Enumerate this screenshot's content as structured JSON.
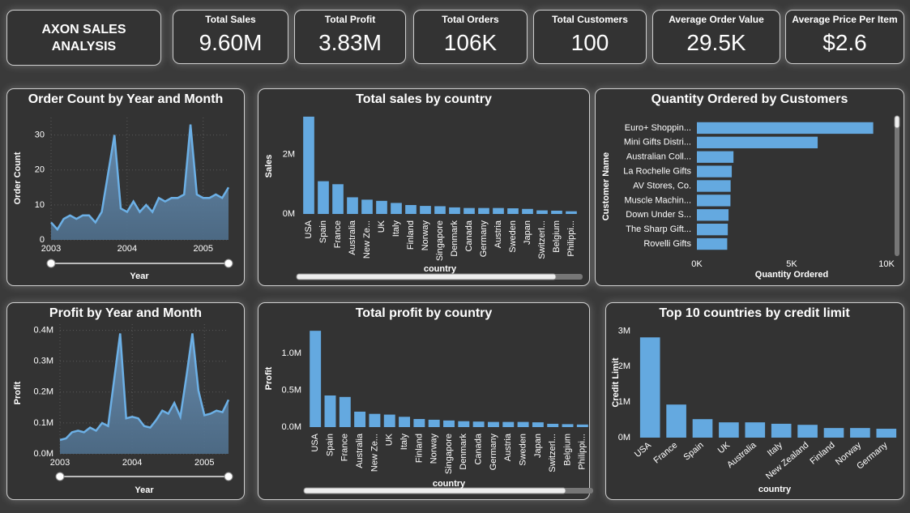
{
  "header": {
    "title": "AXON SALES ANALYSIS"
  },
  "kpis": [
    {
      "label": "Total Sales",
      "value": "9.60M"
    },
    {
      "label": "Total Profit",
      "value": "3.83M"
    },
    {
      "label": "Total Orders",
      "value": "106K"
    },
    {
      "label": "Total Customers",
      "value": "100"
    },
    {
      "label": "Average Order Value",
      "value": "29.5K"
    },
    {
      "label": "Average Price Per Item",
      "value": "$2.6"
    }
  ],
  "chart_data": [
    {
      "type": "area",
      "title": "Order Count by Year and Month",
      "x_label": "Year",
      "y_label": "Order Count",
      "categories": [
        "2003",
        null,
        null,
        null,
        null,
        null,
        null,
        null,
        null,
        null,
        null,
        null,
        "2004",
        null,
        null,
        null,
        null,
        null,
        null,
        null,
        null,
        null,
        null,
        null,
        "2005",
        null,
        null,
        null,
        null
      ],
      "values": [
        5,
        3,
        6,
        7,
        6,
        7,
        7,
        5,
        8,
        19,
        30,
        9,
        8,
        11,
        8,
        10,
        8,
        12,
        11,
        12,
        12,
        13,
        33,
        13,
        12,
        12,
        13,
        12,
        15
      ],
      "color": "#6cb0e6",
      "ylim": [
        0,
        35
      ],
      "yticks": [
        0,
        10,
        20,
        30
      ],
      "grid": true
    },
    {
      "type": "bar",
      "title": "Total sales by country",
      "x_label": "country",
      "y_label": "Sales",
      "categories": [
        "USA",
        "Spain",
        "France",
        "Australia",
        "New Ze...",
        "UK",
        "Italy",
        "Finland",
        "Norway",
        "Singapore",
        "Denmark",
        "Canada",
        "Germany",
        "Austria",
        "Sweden",
        "Japan",
        "Switzerl...",
        "Belgium",
        "Philippi..."
      ],
      "values": [
        3270000,
        1100000,
        1000000,
        560000,
        480000,
        440000,
        370000,
        300000,
        270000,
        260000,
        220000,
        200000,
        200000,
        200000,
        190000,
        170000,
        120000,
        110000,
        90000
      ],
      "color": "#64a9e0",
      "ylim": [
        0,
        3350000
      ],
      "yticks": [
        {
          "value": 0,
          "label": "0M"
        },
        {
          "value": 2000000,
          "label": "2M"
        }
      ],
      "grid": false
    },
    {
      "type": "hbar",
      "title": "Quantity Ordered by Customers",
      "x_label": "Quantity Ordered",
      "y_label": "Customer Name",
      "categories": [
        "Euro+ Shoppin...",
        "Mini Gifts Distri...",
        "Australian Coll...",
        "La Rochelle Gifts",
        "AV Stores, Co.",
        "Muscle Machin...",
        "Down Under S...",
        "The Sharp Gift...",
        "Rovelli Gifts"
      ],
      "values": [
        9300,
        6370,
        1930,
        1840,
        1780,
        1770,
        1670,
        1630,
        1600
      ],
      "color": "#64a9e0",
      "xlim": [
        0,
        10000
      ],
      "xticks": [
        {
          "value": 0,
          "label": "0K"
        },
        {
          "value": 5000,
          "label": "5K"
        },
        {
          "value": 10000,
          "label": "10K"
        }
      ],
      "grid": false
    },
    {
      "type": "area",
      "title": "Profit by Year and Month",
      "x_label": "Year",
      "y_label": "Profit",
      "categories": [
        "2003",
        null,
        null,
        null,
        null,
        null,
        null,
        null,
        null,
        null,
        null,
        null,
        "2004",
        null,
        null,
        null,
        null,
        null,
        null,
        null,
        null,
        null,
        null,
        null,
        "2005",
        null,
        null,
        null,
        null
      ],
      "values": [
        45000,
        50000,
        70000,
        75000,
        70000,
        85000,
        75000,
        100000,
        90000,
        240000,
        390000,
        115000,
        120000,
        115000,
        90000,
        85000,
        110000,
        140000,
        130000,
        165000,
        120000,
        250000,
        390000,
        205000,
        125000,
        130000,
        140000,
        135000,
        175000
      ],
      "color": "#6cb0e6",
      "ylim": [
        0,
        420000
      ],
      "yticks": [
        {
          "value": 0,
          "label": "0.0M"
        },
        {
          "value": 100000,
          "label": "0.1M"
        },
        {
          "value": 200000,
          "label": "0.2M"
        },
        {
          "value": 300000,
          "label": "0.3M"
        },
        {
          "value": 400000,
          "label": "0.4M"
        }
      ],
      "grid": true
    },
    {
      "type": "bar",
      "title": "Total profit by country",
      "x_label": "country",
      "y_label": "Profit",
      "categories": [
        "USA",
        "Spain",
        "France",
        "Australia",
        "New Ze...",
        "UK",
        "Italy",
        "Finland",
        "Norway",
        "Singapore",
        "Denmark",
        "Canada",
        "Germany",
        "Austria",
        "Sweden",
        "Japan",
        "Switzerl...",
        "Belgium",
        "Philippi..."
      ],
      "values": [
        1310000,
        430000,
        410000,
        210000,
        180000,
        170000,
        140000,
        110000,
        100000,
        90000,
        80000,
        75000,
        70000,
        70000,
        70000,
        65000,
        45000,
        40000,
        35000
      ],
      "color": "#64a9e0",
      "ylim": [
        0,
        1400000
      ],
      "yticks": [
        {
          "value": 0,
          "label": "0.0M"
        },
        {
          "value": 500000,
          "label": "0.5M"
        },
        {
          "value": 1000000,
          "label": "1.0M"
        }
      ],
      "grid": false
    },
    {
      "type": "bar",
      "title": "Top 10 countries by credit limit",
      "x_label": "country",
      "y_label": "Credit Limit",
      "categories": [
        "USA",
        "France",
        "Spain",
        "UK",
        "Australia",
        "Italy",
        "New Zealand",
        "Finland",
        "Norway",
        "Germany"
      ],
      "values": [
        2820000,
        930000,
        520000,
        430000,
        430000,
        390000,
        360000,
        270000,
        270000,
        250000
      ],
      "color": "#64a9e0",
      "ylim": [
        0,
        3100000
      ],
      "yticks": [
        {
          "value": 0,
          "label": "0M"
        },
        {
          "value": 1000000,
          "label": "1M"
        },
        {
          "value": 2000000,
          "label": "2M"
        },
        {
          "value": 3000000,
          "label": "3M"
        }
      ],
      "grid": false
    }
  ]
}
